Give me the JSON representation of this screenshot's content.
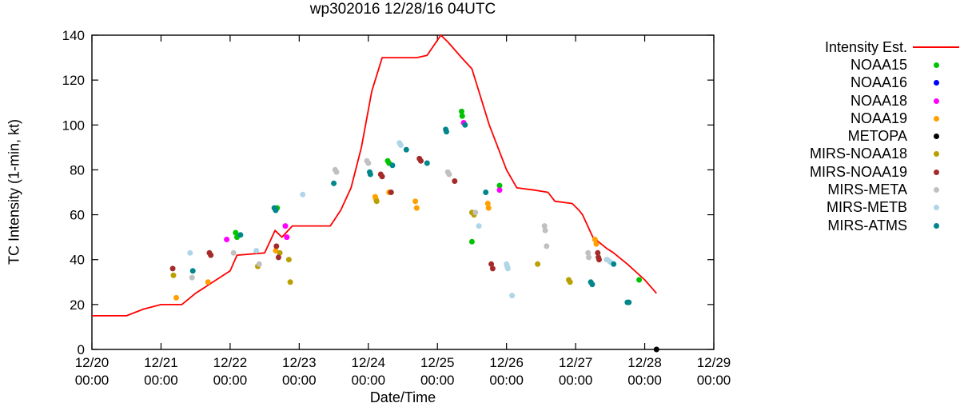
{
  "title": "wp302016 12/28/16 04UTC",
  "axes": {
    "xlabel": "Date/Time",
    "ylabel": "TC Intensity (1-min, kt)"
  },
  "chart_data": {
    "type": "scatter",
    "title": "wp302016 12/28/16 04UTC",
    "xlabel": "Date/Time",
    "ylabel": "TC Intensity (1-min, kt)",
    "x_unit": "days since 12/20 00:00",
    "xlim": [
      0,
      9
    ],
    "ylim": [
      0,
      140
    ],
    "ytick_step": 20,
    "yticks": [
      0,
      20,
      40,
      60,
      80,
      100,
      120,
      140
    ],
    "xticks": [
      {
        "day": 0,
        "line1": "12/20",
        "line2": "00:00"
      },
      {
        "day": 1,
        "line1": "12/21",
        "line2": "00:00"
      },
      {
        "day": 2,
        "line1": "12/22",
        "line2": "00:00"
      },
      {
        "day": 3,
        "line1": "12/23",
        "line2": "00:00"
      },
      {
        "day": 4,
        "line1": "12/24",
        "line2": "00:00"
      },
      {
        "day": 5,
        "line1": "12/25",
        "line2": "00:00"
      },
      {
        "day": 6,
        "line1": "12/26",
        "line2": "00:00"
      },
      {
        "day": 7,
        "line1": "12/27",
        "line2": "00:00"
      },
      {
        "day": 8,
        "line1": "12/28",
        "line2": "00:00"
      },
      {
        "day": 9,
        "line1": "12/29",
        "line2": "00:00"
      }
    ],
    "legend_position": "right",
    "grid": false,
    "line_series": {
      "name": "Intensity Est.",
      "color": "#ff0000",
      "points": [
        [
          0,
          15
        ],
        [
          0.5,
          15
        ],
        [
          0.75,
          18
        ],
        [
          1.0,
          20
        ],
        [
          1.3,
          20
        ],
        [
          1.5,
          25
        ],
        [
          1.75,
          30
        ],
        [
          2.0,
          35
        ],
        [
          2.1,
          42
        ],
        [
          2.5,
          43
        ],
        [
          2.65,
          53
        ],
        [
          2.75,
          50
        ],
        [
          2.9,
          55
        ],
        [
          3.45,
          55
        ],
        [
          3.6,
          62
        ],
        [
          3.75,
          72
        ],
        [
          3.9,
          90
        ],
        [
          4.05,
          115
        ],
        [
          4.2,
          130
        ],
        [
          4.7,
          130
        ],
        [
          4.85,
          131
        ],
        [
          5.05,
          140
        ],
        [
          5.15,
          137
        ],
        [
          5.35,
          130
        ],
        [
          5.5,
          125
        ],
        [
          5.75,
          100
        ],
        [
          6.0,
          80
        ],
        [
          6.15,
          72
        ],
        [
          6.4,
          71
        ],
        [
          6.6,
          70
        ],
        [
          6.7,
          66
        ],
        [
          6.95,
          65
        ],
        [
          7.05,
          62
        ],
        [
          7.1,
          60
        ],
        [
          7.25,
          50
        ],
        [
          7.45,
          45
        ],
        [
          7.55,
          43
        ],
        [
          7.75,
          38
        ],
        [
          8.0,
          31
        ],
        [
          8.17,
          25
        ]
      ]
    },
    "scatter_series": [
      {
        "name": "NOAA15",
        "color": "#00c400",
        "points": [
          [
            2.08,
            52
          ],
          [
            2.1,
            50
          ],
          [
            2.68,
            63
          ],
          [
            4.28,
            84
          ],
          [
            4.3,
            83
          ],
          [
            5.35,
            106
          ],
          [
            5.36,
            104
          ],
          [
            5.5,
            48
          ],
          [
            5.9,
            73
          ],
          [
            7.92,
            31
          ]
        ]
      },
      {
        "name": "NOAA16",
        "color": "#0000ff",
        "points": []
      },
      {
        "name": "NOAA18",
        "color": "#ff00ff",
        "points": [
          [
            1.95,
            49
          ],
          [
            2.8,
            55
          ],
          [
            2.82,
            50
          ],
          [
            5.38,
            101
          ],
          [
            5.9,
            71
          ]
        ]
      },
      {
        "name": "NOAA19",
        "color": "#ffa000",
        "points": [
          [
            1.22,
            23
          ],
          [
            1.68,
            30
          ],
          [
            2.66,
            44
          ],
          [
            4.1,
            68
          ],
          [
            4.11,
            67
          ],
          [
            4.3,
            70
          ],
          [
            4.68,
            66
          ],
          [
            4.7,
            63
          ],
          [
            5.73,
            65
          ],
          [
            5.74,
            63
          ],
          [
            7.28,
            49
          ],
          [
            7.3,
            47
          ]
        ]
      },
      {
        "name": "METOPA",
        "color": "#000000",
        "points": [
          [
            8.17,
            0
          ]
        ]
      },
      {
        "name": "MIRS-NOAA18",
        "color": "#b8a000",
        "points": [
          [
            1.18,
            33
          ],
          [
            2.4,
            37
          ],
          [
            2.72,
            43
          ],
          [
            2.85,
            40
          ],
          [
            2.87,
            30
          ],
          [
            4.12,
            66
          ],
          [
            5.5,
            61
          ],
          [
            5.53,
            60
          ],
          [
            6.45,
            38
          ],
          [
            6.9,
            31
          ],
          [
            6.92,
            30
          ]
        ]
      },
      {
        "name": "MIRS-NOAA19",
        "color": "#a52a2a",
        "points": [
          [
            1.17,
            36
          ],
          [
            1.7,
            43
          ],
          [
            1.72,
            42
          ],
          [
            2.67,
            46
          ],
          [
            2.7,
            41
          ],
          [
            4.18,
            78
          ],
          [
            4.2,
            77
          ],
          [
            4.33,
            70
          ],
          [
            4.74,
            85
          ],
          [
            4.76,
            84
          ],
          [
            5.25,
            75
          ],
          [
            5.78,
            38
          ],
          [
            5.8,
            36
          ],
          [
            7.32,
            43
          ],
          [
            7.33,
            41
          ],
          [
            7.34,
            40
          ]
        ]
      },
      {
        "name": "MIRS-META",
        "color": "#c0c0c0",
        "points": [
          [
            1.45,
            32
          ],
          [
            2.05,
            43
          ],
          [
            2.42,
            38
          ],
          [
            3.52,
            80
          ],
          [
            3.54,
            79
          ],
          [
            3.98,
            84
          ],
          [
            4.0,
            83
          ],
          [
            5.15,
            79
          ],
          [
            5.17,
            78
          ],
          [
            5.55,
            61
          ],
          [
            6.55,
            55
          ],
          [
            6.56,
            53
          ],
          [
            6.58,
            46
          ],
          [
            7.18,
            43
          ],
          [
            7.19,
            41
          ],
          [
            7.45,
            40
          ]
        ]
      },
      {
        "name": "MIRS-METB",
        "color": "#aed6e8",
        "points": [
          [
            1.42,
            43
          ],
          [
            2.38,
            44
          ],
          [
            3.05,
            69
          ],
          [
            4.45,
            92
          ],
          [
            4.47,
            91
          ],
          [
            5.6,
            55
          ],
          [
            6.0,
            38
          ],
          [
            6.01,
            37
          ],
          [
            6.02,
            36
          ],
          [
            6.08,
            24
          ],
          [
            7.46,
            40
          ],
          [
            7.5,
            39
          ]
        ]
      },
      {
        "name": "MIRS-ATMS",
        "color": "#00868b",
        "points": [
          [
            1.46,
            35
          ],
          [
            2.15,
            51
          ],
          [
            2.64,
            63
          ],
          [
            2.66,
            62
          ],
          [
            3.5,
            74
          ],
          [
            4.02,
            79
          ],
          [
            4.03,
            78
          ],
          [
            4.35,
            82
          ],
          [
            4.55,
            89
          ],
          [
            4.85,
            83
          ],
          [
            5.12,
            98
          ],
          [
            5.13,
            97
          ],
          [
            5.4,
            100
          ],
          [
            5.7,
            70
          ],
          [
            7.22,
            30
          ],
          [
            7.24,
            29
          ],
          [
            7.55,
            38
          ],
          [
            7.75,
            21
          ],
          [
            7.77,
            21
          ]
        ]
      }
    ]
  }
}
